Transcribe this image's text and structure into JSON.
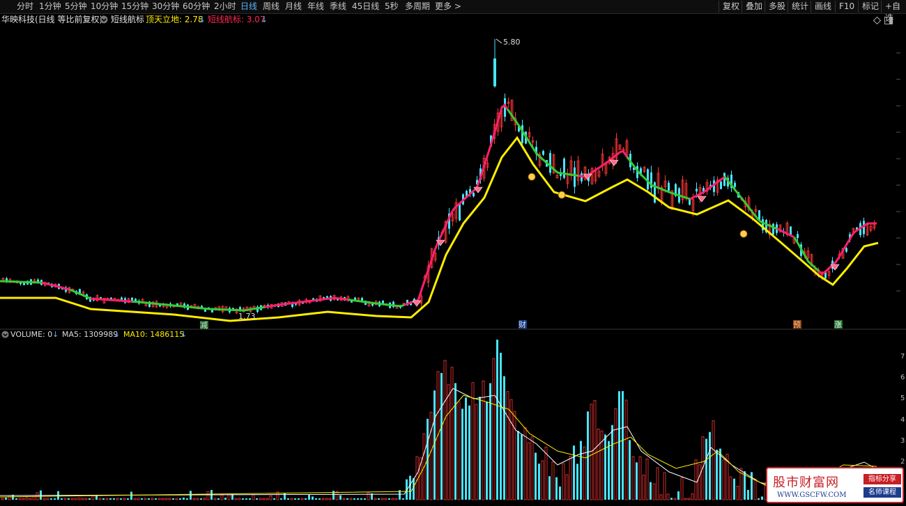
{
  "toolbar": {
    "tabs": [
      "分时",
      "1分钟",
      "5分钟",
      "10分钟",
      "15分钟",
      "30分钟",
      "60分钟",
      "2小时",
      "日线",
      "周线",
      "月线",
      "年线",
      "季线",
      "45日线",
      "5秒",
      "多周期",
      "更多 >"
    ],
    "active_tab": "日线",
    "right_tabs": [
      "复权",
      "叠加",
      "多股",
      "统计",
      "画线",
      "F10",
      "标记",
      "+自选"
    ]
  },
  "header": {
    "stock": "华映科技(日线 等比前复权)",
    "indicator_icon": "collapse-circle-icon",
    "indicator": "短线航标",
    "line1_label": "顶天立地: 2.78",
    "line1_arrow": "↓",
    "line2_label": "短线航标: 3.07",
    "line2_arrow": "↓"
  },
  "main_chart": {
    "high_label": "5.80",
    "low_label": "1.73",
    "event_labels": [
      "减",
      "财",
      "预",
      "涨"
    ],
    "colors": {
      "ma_up": "#ff1f6e",
      "ma_down": "#33cc33",
      "long": "#ffee00",
      "up": "#ff3838",
      "down": "#47e5ff",
      "bg": "#000000"
    }
  },
  "volume_header": {
    "icon": "collapse-circle-icon",
    "volume_label": "VOLUME: 0",
    "ma5_label": "MA5: 1309989",
    "ma10_label": "MA10: 1486115",
    "arrow": "↓"
  },
  "volume_axis": [
    "7",
    "6",
    "5",
    "4",
    "3",
    "2"
  ],
  "watermark": {
    "title": "股市财富网",
    "url": "WWW.GSCFW.COM",
    "tag1": "指标分享",
    "tag2": "名师课程"
  }
}
